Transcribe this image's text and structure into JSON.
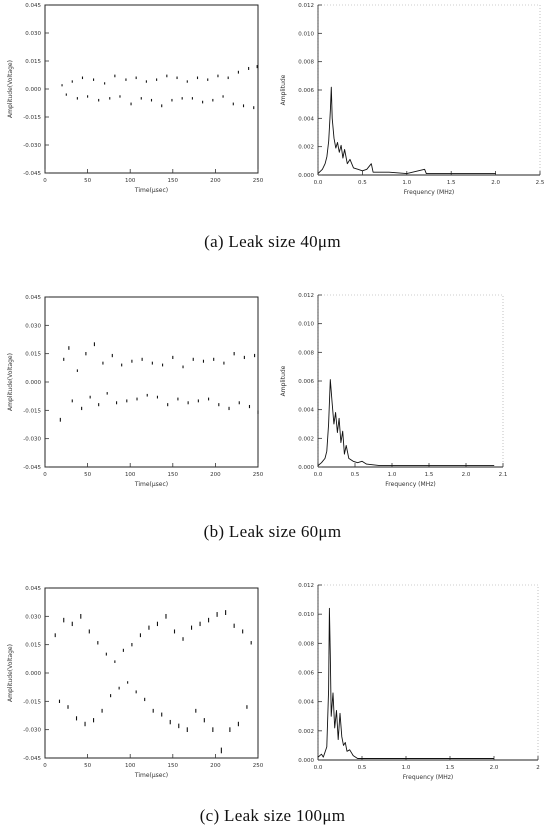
{
  "chart_data": [
    {
      "id": "a-time",
      "type": "scatter",
      "xlabel": "Time(μsec)",
      "ylabel": "Amplitude(Voltage)",
      "xlim": [
        0,
        250
      ],
      "ylim": [
        -0.045,
        0.045
      ],
      "xticks": [
        "0",
        "50",
        "100",
        "150",
        "200",
        "250"
      ],
      "yticks": [
        "0.045",
        "0.030",
        "0.015",
        "0.000",
        "-0.015",
        "-0.030",
        "-0.045"
      ],
      "series": [
        {
          "values": [
            [
              20,
              0.002
            ],
            [
              25,
              -0.003
            ],
            [
              32,
              0.004
            ],
            [
              38,
              -0.005
            ],
            [
              44,
              0.006
            ],
            [
              50,
              -0.004
            ],
            [
              57,
              0.005
            ],
            [
              63,
              -0.006
            ],
            [
              70,
              0.003
            ],
            [
              76,
              -0.005
            ],
            [
              82,
              0.007
            ],
            [
              88,
              -0.004
            ],
            [
              95,
              0.005
            ],
            [
              101,
              -0.008
            ],
            [
              107,
              0.006
            ],
            [
              113,
              -0.005
            ],
            [
              119,
              0.004
            ],
            [
              125,
              -0.006
            ],
            [
              131,
              0.005
            ],
            [
              137,
              -0.009
            ],
            [
              143,
              0.007
            ],
            [
              149,
              -0.006
            ],
            [
              155,
              0.006
            ],
            [
              161,
              -0.005
            ],
            [
              167,
              0.004
            ],
            [
              173,
              -0.005
            ],
            [
              179,
              0.006
            ],
            [
              185,
              -0.007
            ],
            [
              191,
              0.005
            ],
            [
              197,
              -0.006
            ],
            [
              203,
              0.007
            ],
            [
              209,
              -0.004
            ],
            [
              215,
              0.006
            ],
            [
              221,
              -0.008
            ],
            [
              227,
              0.009
            ],
            [
              233,
              -0.009
            ],
            [
              239,
              0.011
            ],
            [
              245,
              -0.01
            ],
            [
              249,
              0.012
            ]
          ]
        }
      ]
    },
    {
      "id": "a-freq",
      "type": "line",
      "xlabel": "Frequency (MHz)",
      "ylabel": "Amplitude",
      "xlim": [
        0,
        2.5
      ],
      "ylim": [
        0,
        0.012
      ],
      "xticks": [
        "0.0",
        "0.5",
        "1.0",
        "1.5",
        "2.0",
        "2.5"
      ],
      "yticks": [
        "0.012",
        "0.010",
        "0.008",
        "0.006",
        "0.004",
        "0.002",
        "0.000"
      ],
      "series": [
        {
          "values": [
            [
              0.0,
              0.0001
            ],
            [
              0.05,
              0.0004
            ],
            [
              0.08,
              0.0008
            ],
            [
              0.1,
              0.0013
            ],
            [
              0.12,
              0.0024
            ],
            [
              0.14,
              0.0046
            ],
            [
              0.15,
              0.0062
            ],
            [
              0.16,
              0.004
            ],
            [
              0.18,
              0.0026
            ],
            [
              0.2,
              0.0019
            ],
            [
              0.22,
              0.0023
            ],
            [
              0.24,
              0.0016
            ],
            [
              0.26,
              0.0021
            ],
            [
              0.28,
              0.0012
            ],
            [
              0.3,
              0.0018
            ],
            [
              0.33,
              0.0008
            ],
            [
              0.36,
              0.0011
            ],
            [
              0.4,
              0.0005
            ],
            [
              0.45,
              0.0004
            ],
            [
              0.5,
              0.0003
            ],
            [
              0.55,
              0.0004
            ],
            [
              0.6,
              0.0008
            ],
            [
              0.62,
              0.0002
            ],
            [
              0.7,
              0.0002
            ],
            [
              0.8,
              0.0002
            ],
            [
              1.0,
              0.0001
            ],
            [
              1.2,
              0.0004
            ],
            [
              1.22,
              0.0001
            ],
            [
              1.5,
              0.0001
            ],
            [
              1.8,
              0.0001
            ],
            [
              2.0,
              0.0001
            ]
          ]
        }
      ]
    },
    {
      "id": "b-time",
      "type": "scatter",
      "xlabel": "Time(μsec)",
      "ylabel": "Amplitude(Voltage)",
      "xlim": [
        0,
        250
      ],
      "ylim": [
        -0.045,
        0.045
      ],
      "xticks": [
        "0",
        "50",
        "100",
        "150",
        "200",
        "250"
      ],
      "yticks": [
        "0.045",
        "0.030",
        "0.015",
        "0.000",
        "-0.015",
        "-0.030",
        "-0.045"
      ],
      "series": [
        {
          "values": [
            [
              18,
              -0.02
            ],
            [
              22,
              0.012
            ],
            [
              28,
              0.018
            ],
            [
              32,
              -0.01
            ],
            [
              38,
              0.006
            ],
            [
              43,
              -0.014
            ],
            [
              48,
              0.015
            ],
            [
              53,
              -0.008
            ],
            [
              58,
              0.02
            ],
            [
              63,
              -0.012
            ],
            [
              68,
              0.01
            ],
            [
              73,
              -0.006
            ],
            [
              79,
              0.014
            ],
            [
              84,
              -0.011
            ],
            [
              90,
              0.009
            ],
            [
              96,
              -0.01
            ],
            [
              102,
              0.011
            ],
            [
              108,
              -0.009
            ],
            [
              114,
              0.012
            ],
            [
              120,
              -0.007
            ],
            [
              126,
              0.01
            ],
            [
              132,
              -0.008
            ],
            [
              138,
              0.009
            ],
            [
              144,
              -0.012
            ],
            [
              150,
              0.013
            ],
            [
              156,
              -0.009
            ],
            [
              162,
              0.008
            ],
            [
              168,
              -0.011
            ],
            [
              174,
              0.012
            ],
            [
              180,
              -0.01
            ],
            [
              186,
              0.011
            ],
            [
              192,
              -0.009
            ],
            [
              198,
              0.012
            ],
            [
              204,
              -0.012
            ],
            [
              210,
              0.01
            ],
            [
              216,
              -0.014
            ],
            [
              222,
              0.015
            ],
            [
              228,
              -0.011
            ],
            [
              234,
              0.013
            ],
            [
              240,
              -0.013
            ],
            [
              246,
              0.014
            ],
            [
              250,
              -0.016
            ]
          ]
        }
      ]
    },
    {
      "id": "b-freq",
      "type": "line",
      "xlabel": "Frequency (MHz)",
      "ylabel": "Amplitude",
      "xlim": [
        0,
        2.1
      ],
      "ylim": [
        0,
        0.012
      ],
      "xticks": [
        "0.0",
        "0.5",
        "1.0",
        "1.5",
        "2.0",
        "2.1"
      ],
      "yticks": [
        "0.012",
        "0.010",
        "0.008",
        "0.006",
        "0.004",
        "0.002",
        "0.000"
      ],
      "series": [
        {
          "values": [
            [
              0.0,
              0.0001
            ],
            [
              0.04,
              0.0003
            ],
            [
              0.08,
              0.0006
            ],
            [
              0.1,
              0.0011
            ],
            [
              0.12,
              0.003
            ],
            [
              0.14,
              0.0061
            ],
            [
              0.16,
              0.0045
            ],
            [
              0.18,
              0.003
            ],
            [
              0.2,
              0.0038
            ],
            [
              0.22,
              0.0024
            ],
            [
              0.24,
              0.0034
            ],
            [
              0.26,
              0.0017
            ],
            [
              0.28,
              0.0025
            ],
            [
              0.3,
              0.0009
            ],
            [
              0.32,
              0.0015
            ],
            [
              0.35,
              0.0006
            ],
            [
              0.4,
              0.0004
            ],
            [
              0.45,
              0.0003
            ],
            [
              0.5,
              0.0004
            ],
            [
              0.55,
              0.0002
            ],
            [
              0.7,
              0.0001
            ],
            [
              1.0,
              0.0001
            ],
            [
              1.5,
              0.0001
            ],
            [
              2.0,
              0.0001
            ]
          ]
        }
      ]
    },
    {
      "id": "c-time",
      "type": "scatter",
      "xlabel": "Time(μsec)",
      "ylabel": "Amplitude(Voltage)",
      "xlim": [
        0,
        250
      ],
      "ylim": [
        -0.045,
        0.045
      ],
      "xticks": [
        "0",
        "50",
        "100",
        "150",
        "200",
        "250"
      ],
      "yticks": [
        "0.045",
        "0.030",
        "0.015",
        "0.000",
        "-0.015",
        "-0.030",
        "-0.045"
      ],
      "series": [
        {
          "values": [
            [
              12,
              0.02
            ],
            [
              17,
              -0.015
            ],
            [
              22,
              0.028
            ],
            [
              27,
              -0.018
            ],
            [
              32,
              0.026
            ],
            [
              37,
              -0.024
            ],
            [
              42,
              0.03
            ],
            [
              47,
              -0.027
            ],
            [
              52,
              0.022
            ],
            [
              57,
              -0.025
            ],
            [
              62,
              0.016
            ],
            [
              67,
              -0.02
            ],
            [
              72,
              0.01
            ],
            [
              77,
              -0.012
            ],
            [
              82,
              0.006
            ],
            [
              87,
              -0.008
            ],
            [
              92,
              0.012
            ],
            [
              97,
              -0.005
            ],
            [
              102,
              0.015
            ],
            [
              107,
              -0.01
            ],
            [
              112,
              0.02
            ],
            [
              117,
              -0.014
            ],
            [
              122,
              0.024
            ],
            [
              127,
              -0.02
            ],
            [
              132,
              0.026
            ],
            [
              137,
              -0.022
            ],
            [
              142,
              0.03
            ],
            [
              147,
              -0.026
            ],
            [
              152,
              0.022
            ],
            [
              157,
              -0.028
            ],
            [
              162,
              0.018
            ],
            [
              167,
              -0.03
            ],
            [
              172,
              0.024
            ],
            [
              177,
              -0.02
            ],
            [
              182,
              0.026
            ],
            [
              187,
              -0.025
            ],
            [
              192,
              0.028
            ],
            [
              197,
              -0.03
            ],
            [
              202,
              0.031
            ],
            [
              207,
              -0.041
            ],
            [
              212,
              0.032
            ],
            [
              217,
              -0.03
            ],
            [
              222,
              0.025
            ],
            [
              227,
              -0.027
            ],
            [
              232,
              0.022
            ],
            [
              237,
              -0.018
            ],
            [
              242,
              0.016
            ]
          ]
        }
      ]
    },
    {
      "id": "c-freq",
      "type": "line",
      "xlabel": "Frequency (MHz)",
      "ylabel": "",
      "xlim": [
        0,
        2.5
      ],
      "ylim": [
        0,
        0.012
      ],
      "xticks": [
        "0.0",
        "0.5",
        "1.0",
        "1.5",
        "2.0",
        "2"
      ],
      "yticks": [
        "0.012",
        "0.010",
        "0.008",
        "0.006",
        "0.004",
        "0.002",
        "0.000"
      ],
      "series": [
        {
          "values": [
            [
              0.0,
              0.0002
            ],
            [
              0.04,
              0.0004
            ],
            [
              0.06,
              0.0002
            ],
            [
              0.1,
              0.0009
            ],
            [
              0.12,
              0.0048
            ],
            [
              0.13,
              0.0104
            ],
            [
              0.14,
              0.0072
            ],
            [
              0.15,
              0.003
            ],
            [
              0.17,
              0.0046
            ],
            [
              0.19,
              0.0022
            ],
            [
              0.21,
              0.0034
            ],
            [
              0.23,
              0.0014
            ],
            [
              0.25,
              0.0032
            ],
            [
              0.27,
              0.0016
            ],
            [
              0.29,
              0.001
            ],
            [
              0.31,
              0.0012
            ],
            [
              0.33,
              0.0006
            ],
            [
              0.36,
              0.0007
            ],
            [
              0.4,
              0.0003
            ],
            [
              0.45,
              0.0001
            ],
            [
              0.6,
              0.0001
            ],
            [
              1.0,
              0.0001
            ],
            [
              1.5,
              0.0001
            ],
            [
              2.0,
              0.0001
            ]
          ]
        }
      ]
    }
  ],
  "captions": {
    "a": "(a) Leak size 40μm",
    "b": "(b) Leak size 60μm",
    "c": "(c) Leak size 100μm"
  }
}
